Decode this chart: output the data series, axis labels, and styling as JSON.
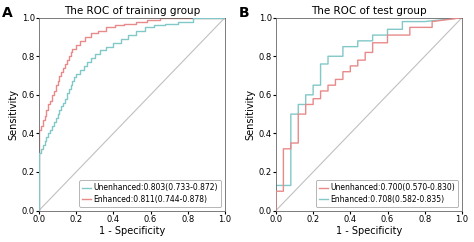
{
  "panel_A": {
    "title": "The ROC of training group",
    "label": "A",
    "unenhanced_label": "Unenhanced:0.803(0.733-0.872)",
    "enhanced_label": "Enhanced:0.811(0.744-0.878)",
    "unenhanced_color": "#82c8c8",
    "enhanced_color": "#e88a8a",
    "xlabel": "1 - Specificity",
    "ylabel": "Sensitivity",
    "xticks": [
      0.0,
      0.2,
      0.4,
      0.6,
      0.8,
      1.0
    ],
    "yticks": [
      0.0,
      0.2,
      0.4,
      0.6,
      0.8,
      1.0
    ],
    "unenhanced_fpr": [
      0.0,
      0.0,
      0.01,
      0.01,
      0.02,
      0.02,
      0.03,
      0.03,
      0.04,
      0.04,
      0.05,
      0.05,
      0.06,
      0.06,
      0.07,
      0.07,
      0.08,
      0.08,
      0.09,
      0.09,
      0.1,
      0.1,
      0.11,
      0.11,
      0.12,
      0.12,
      0.13,
      0.13,
      0.14,
      0.14,
      0.15,
      0.15,
      0.16,
      0.16,
      0.17,
      0.17,
      0.18,
      0.18,
      0.19,
      0.19,
      0.2,
      0.2,
      0.22,
      0.22,
      0.24,
      0.24,
      0.26,
      0.26,
      0.28,
      0.28,
      0.3,
      0.3,
      0.33,
      0.33,
      0.36,
      0.36,
      0.4,
      0.4,
      0.44,
      0.44,
      0.48,
      0.48,
      0.52,
      0.52,
      0.57,
      0.57,
      0.62,
      0.62,
      0.68,
      0.68,
      0.75,
      0.75,
      0.83,
      0.83,
      1.0
    ],
    "unenhanced_tpr": [
      0.0,
      0.3,
      0.3,
      0.32,
      0.32,
      0.34,
      0.34,
      0.36,
      0.36,
      0.38,
      0.38,
      0.4,
      0.4,
      0.42,
      0.42,
      0.44,
      0.44,
      0.46,
      0.46,
      0.48,
      0.48,
      0.5,
      0.5,
      0.52,
      0.52,
      0.54,
      0.54,
      0.56,
      0.56,
      0.58,
      0.58,
      0.61,
      0.61,
      0.63,
      0.63,
      0.65,
      0.65,
      0.67,
      0.67,
      0.69,
      0.69,
      0.71,
      0.71,
      0.73,
      0.73,
      0.75,
      0.75,
      0.77,
      0.77,
      0.79,
      0.79,
      0.81,
      0.81,
      0.83,
      0.83,
      0.85,
      0.85,
      0.87,
      0.87,
      0.89,
      0.89,
      0.91,
      0.91,
      0.93,
      0.93,
      0.95,
      0.95,
      0.96,
      0.96,
      0.97,
      0.97,
      0.98,
      0.98,
      1.0,
      1.0
    ],
    "enhanced_fpr": [
      0.0,
      0.0,
      0.01,
      0.01,
      0.02,
      0.02,
      0.03,
      0.03,
      0.04,
      0.04,
      0.05,
      0.05,
      0.06,
      0.06,
      0.07,
      0.07,
      0.08,
      0.08,
      0.09,
      0.09,
      0.1,
      0.1,
      0.11,
      0.11,
      0.12,
      0.12,
      0.13,
      0.13,
      0.14,
      0.14,
      0.15,
      0.15,
      0.16,
      0.16,
      0.17,
      0.17,
      0.18,
      0.18,
      0.2,
      0.2,
      0.22,
      0.22,
      0.25,
      0.25,
      0.28,
      0.28,
      0.32,
      0.32,
      0.36,
      0.36,
      0.41,
      0.41,
      0.46,
      0.46,
      0.52,
      0.52,
      0.58,
      0.58,
      0.65,
      0.65,
      0.73,
      0.73,
      1.0
    ],
    "enhanced_tpr": [
      0.0,
      0.42,
      0.42,
      0.44,
      0.44,
      0.47,
      0.47,
      0.49,
      0.49,
      0.52,
      0.52,
      0.55,
      0.55,
      0.57,
      0.57,
      0.6,
      0.6,
      0.62,
      0.62,
      0.65,
      0.65,
      0.67,
      0.67,
      0.7,
      0.7,
      0.72,
      0.72,
      0.74,
      0.74,
      0.76,
      0.76,
      0.78,
      0.78,
      0.8,
      0.8,
      0.82,
      0.82,
      0.84,
      0.84,
      0.86,
      0.86,
      0.88,
      0.88,
      0.9,
      0.9,
      0.92,
      0.92,
      0.93,
      0.93,
      0.95,
      0.95,
      0.96,
      0.96,
      0.97,
      0.97,
      0.98,
      0.98,
      0.99,
      0.99,
      1.0,
      1.0,
      1.0,
      1.0
    ]
  },
  "panel_B": {
    "title": "The ROC of test group",
    "label": "B",
    "unenhanced_label": "Unenhanced:0.700(0.570-0.830)",
    "enhanced_label": "Enhanced:0.708(0.582-0.835)",
    "unenhanced_color": "#e88a8a",
    "enhanced_color": "#82c8c8",
    "xlabel": "1 - Specificity",
    "ylabel": "Sensitivity",
    "xticks": [
      0.0,
      0.2,
      0.4,
      0.6,
      0.8,
      1.0
    ],
    "yticks": [
      0.0,
      0.2,
      0.4,
      0.6,
      0.8,
      1.0
    ],
    "unenhanced_fpr": [
      0.0,
      0.0,
      0.04,
      0.04,
      0.08,
      0.08,
      0.12,
      0.12,
      0.16,
      0.16,
      0.2,
      0.2,
      0.24,
      0.24,
      0.28,
      0.28,
      0.32,
      0.32,
      0.36,
      0.36,
      0.4,
      0.4,
      0.44,
      0.44,
      0.48,
      0.48,
      0.52,
      0.52,
      0.6,
      0.6,
      0.72,
      0.72,
      0.84,
      0.84,
      1.0
    ],
    "unenhanced_tpr": [
      0.0,
      0.1,
      0.1,
      0.32,
      0.32,
      0.35,
      0.35,
      0.5,
      0.5,
      0.55,
      0.55,
      0.58,
      0.58,
      0.62,
      0.62,
      0.65,
      0.65,
      0.68,
      0.68,
      0.72,
      0.72,
      0.75,
      0.75,
      0.78,
      0.78,
      0.82,
      0.82,
      0.87,
      0.87,
      0.91,
      0.91,
      0.95,
      0.95,
      0.98,
      1.0
    ],
    "enhanced_fpr": [
      0.0,
      0.0,
      0.04,
      0.04,
      0.08,
      0.08,
      0.12,
      0.12,
      0.16,
      0.16,
      0.2,
      0.2,
      0.24,
      0.24,
      0.28,
      0.28,
      0.36,
      0.36,
      0.44,
      0.44,
      0.52,
      0.52,
      0.6,
      0.6,
      0.68,
      0.68,
      0.8,
      0.8,
      1.0
    ],
    "enhanced_tpr": [
      0.0,
      0.13,
      0.13,
      0.13,
      0.13,
      0.5,
      0.5,
      0.55,
      0.55,
      0.6,
      0.6,
      0.65,
      0.65,
      0.76,
      0.76,
      0.8,
      0.8,
      0.85,
      0.85,
      0.88,
      0.88,
      0.91,
      0.91,
      0.94,
      0.94,
      0.98,
      0.98,
      0.98,
      1.0
    ]
  },
  "bg_color": "#ffffff",
  "diag_color": "#c0c0c0",
  "linewidth": 1.0,
  "legend_fontsize": 5.5,
  "tick_fontsize": 6.0,
  "label_fontsize": 7.0,
  "title_fontsize": 7.5,
  "panel_label_fontsize": 10
}
